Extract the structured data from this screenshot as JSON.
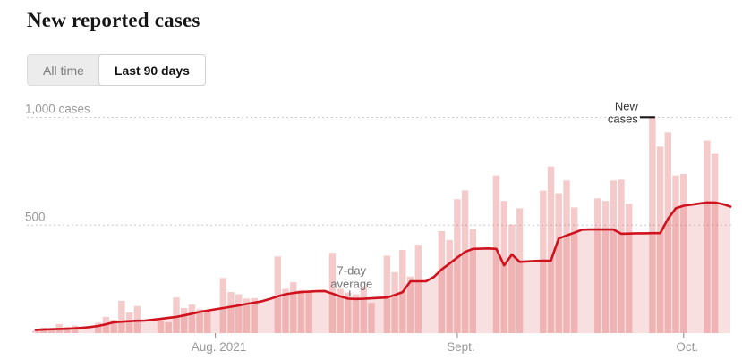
{
  "header": {
    "title": "New reported cases"
  },
  "toggle": {
    "options": [
      {
        "label": "All time",
        "active": false
      },
      {
        "label": "Last 90 days",
        "active": true
      }
    ]
  },
  "chart_data": {
    "type": "bar",
    "title": "New reported cases",
    "unit": "cases",
    "ylim": [
      0,
      1075
    ],
    "grid": "dashed-horizontal",
    "legend_position": "annotations-inline",
    "y_ticks": [
      {
        "value": 1000,
        "label": "1,000 cases"
      },
      {
        "value": 500,
        "label": "500"
      }
    ],
    "x_ticks": [
      {
        "day_index": 23,
        "label": "Aug. 2021"
      },
      {
        "day_index": 54,
        "label": "Sept."
      },
      {
        "day_index": 83,
        "label": "Oct."
      }
    ],
    "series": [
      {
        "name": "New cases",
        "type": "bar",
        "values": [
          12,
          25,
          20,
          42,
          30,
          35,
          0,
          0,
          48,
          75,
          62,
          150,
          95,
          125,
          0,
          0,
          55,
          50,
          165,
          116,
          132,
          110,
          97,
          0,
          255,
          190,
          180,
          160,
          162,
          0,
          0,
          355,
          205,
          235,
          200,
          193,
          0,
          0,
          372,
          205,
          188,
          180,
          215,
          140,
          0,
          358,
          283,
          385,
          262,
          409,
          0,
          0,
          472,
          431,
          620,
          661,
          483,
          0,
          0,
          730,
          612,
          503,
          578,
          0,
          0,
          660,
          771,
          648,
          707,
          582,
          0,
          0,
          624,
          612,
          707,
          711,
          599,
          0,
          0,
          1005,
          864,
          930,
          730,
          737,
          0,
          0,
          892,
          834,
          0,
          0
        ]
      },
      {
        "name": "7-day average",
        "type": "line-with-area",
        "values": [
          15,
          16,
          18,
          19,
          20,
          22,
          25,
          28,
          33,
          41,
          50,
          53,
          55,
          57,
          58,
          62,
          66,
          71,
          75,
          82,
          90,
          98,
          104,
          110,
          116,
          122,
          128,
          135,
          141,
          148,
          158,
          170,
          180,
          186,
          190,
          192,
          194,
          195,
          183,
          170,
          160,
          158,
          159,
          161,
          163,
          165,
          177,
          190,
          240,
          240,
          240,
          260,
          295,
          322,
          350,
          376,
          390,
          391,
          392,
          390,
          314,
          364,
          330,
          332,
          334,
          335,
          336,
          438,
          452,
          465,
          479,
          480,
          480,
          480,
          480,
          460,
          461,
          462,
          462,
          463,
          463,
          529,
          578,
          590,
          595,
          600,
          605,
          605,
          598,
          586
        ]
      }
    ],
    "annotations": [
      {
        "id": "seven-day-average",
        "text_lines": [
          "7-day",
          "average"
        ],
        "target": "line",
        "day_index": 40,
        "color": "#757575"
      },
      {
        "id": "new-cases",
        "text_lines": [
          "New",
          "cases"
        ],
        "target": "bar-peak",
        "day_index": 79,
        "color": "#333333"
      }
    ],
    "colors": {
      "bar": "rgba(214,60,60,0.27)",
      "area": "rgba(214,60,60,0.16)",
      "line": "#d0121f",
      "grid": "#cccccc",
      "axis_text": "#999999",
      "annotation_dash": "#1a1a1a"
    }
  }
}
